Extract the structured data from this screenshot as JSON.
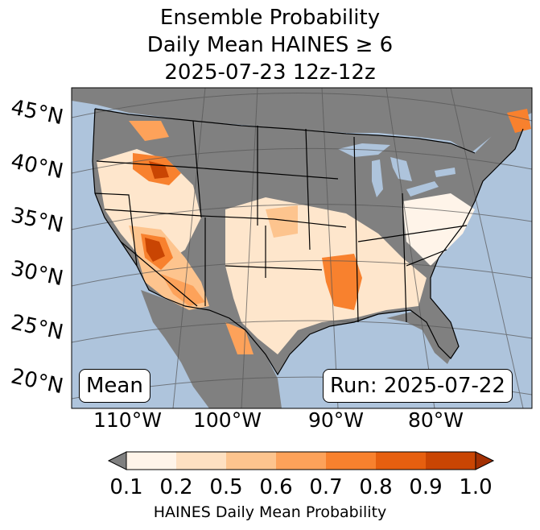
{
  "title": {
    "line1": "Ensemble Probability",
    "line2": "Daily Mean HAINES ≥ 6",
    "line3": "2025-07-23 12z-12z"
  },
  "map": {
    "lat_labels": [
      "45°N",
      "40°N",
      "35°N",
      "30°N",
      "25°N",
      "20°N"
    ],
    "lon_labels": [
      "110°W",
      "100°W",
      "90°W",
      "80°W"
    ],
    "ocean_color": "#aec4dc",
    "nodata_color": "#808080",
    "mean_label": "Mean",
    "run_label": "Run: 2025-07-22"
  },
  "colorbar": {
    "ticks": [
      "0.1",
      "0.2",
      "0.5",
      "0.6",
      "0.7",
      "0.8",
      "0.9",
      "1.0"
    ],
    "colors": [
      "#fff4e9",
      "#fee0c1",
      "#fdc48e",
      "#fda25a",
      "#f8812e",
      "#e65f0f",
      "#c94503",
      "#a33003"
    ],
    "under_color": "#808080",
    "label": "HAINES Daily Mean Probability"
  }
}
